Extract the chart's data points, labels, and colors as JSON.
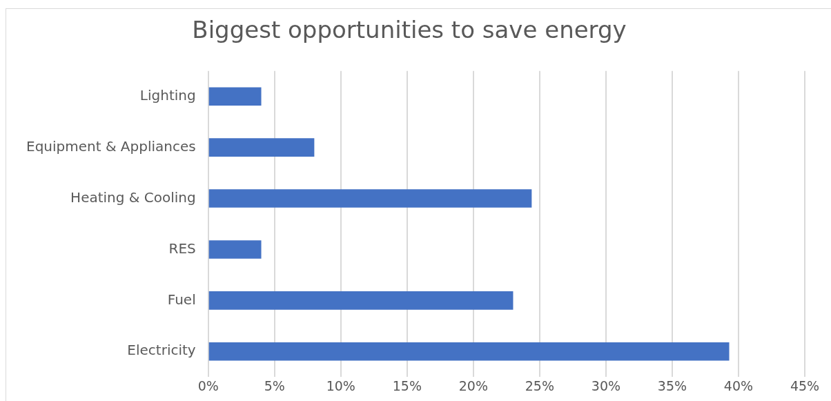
{
  "chart_data": {
    "type": "bar",
    "orientation": "horizontal",
    "title": "Biggest opportunities to save energy",
    "categories": [
      "Lighting",
      "Equipment & Appliances",
      "Heating & Cooling",
      "RES",
      "Fuel",
      "Electricity"
    ],
    "values": [
      4,
      8,
      24.4,
      4,
      23,
      39.3
    ],
    "color": "#4472c4",
    "xlim": [
      0,
      45
    ],
    "xticks": [
      {
        "value": 0,
        "label": "0%"
      },
      {
        "value": 5,
        "label": "5%"
      },
      {
        "value": 10,
        "label": "10%"
      },
      {
        "value": 15,
        "label": "15%"
      },
      {
        "value": 20,
        "label": "20%"
      },
      {
        "value": 25,
        "label": "25%"
      },
      {
        "value": 30,
        "label": "30%"
      },
      {
        "value": 35,
        "label": "35%"
      },
      {
        "value": 40,
        "label": "40%"
      },
      {
        "value": 45,
        "label": "45%"
      }
    ],
    "grid": "x"
  }
}
